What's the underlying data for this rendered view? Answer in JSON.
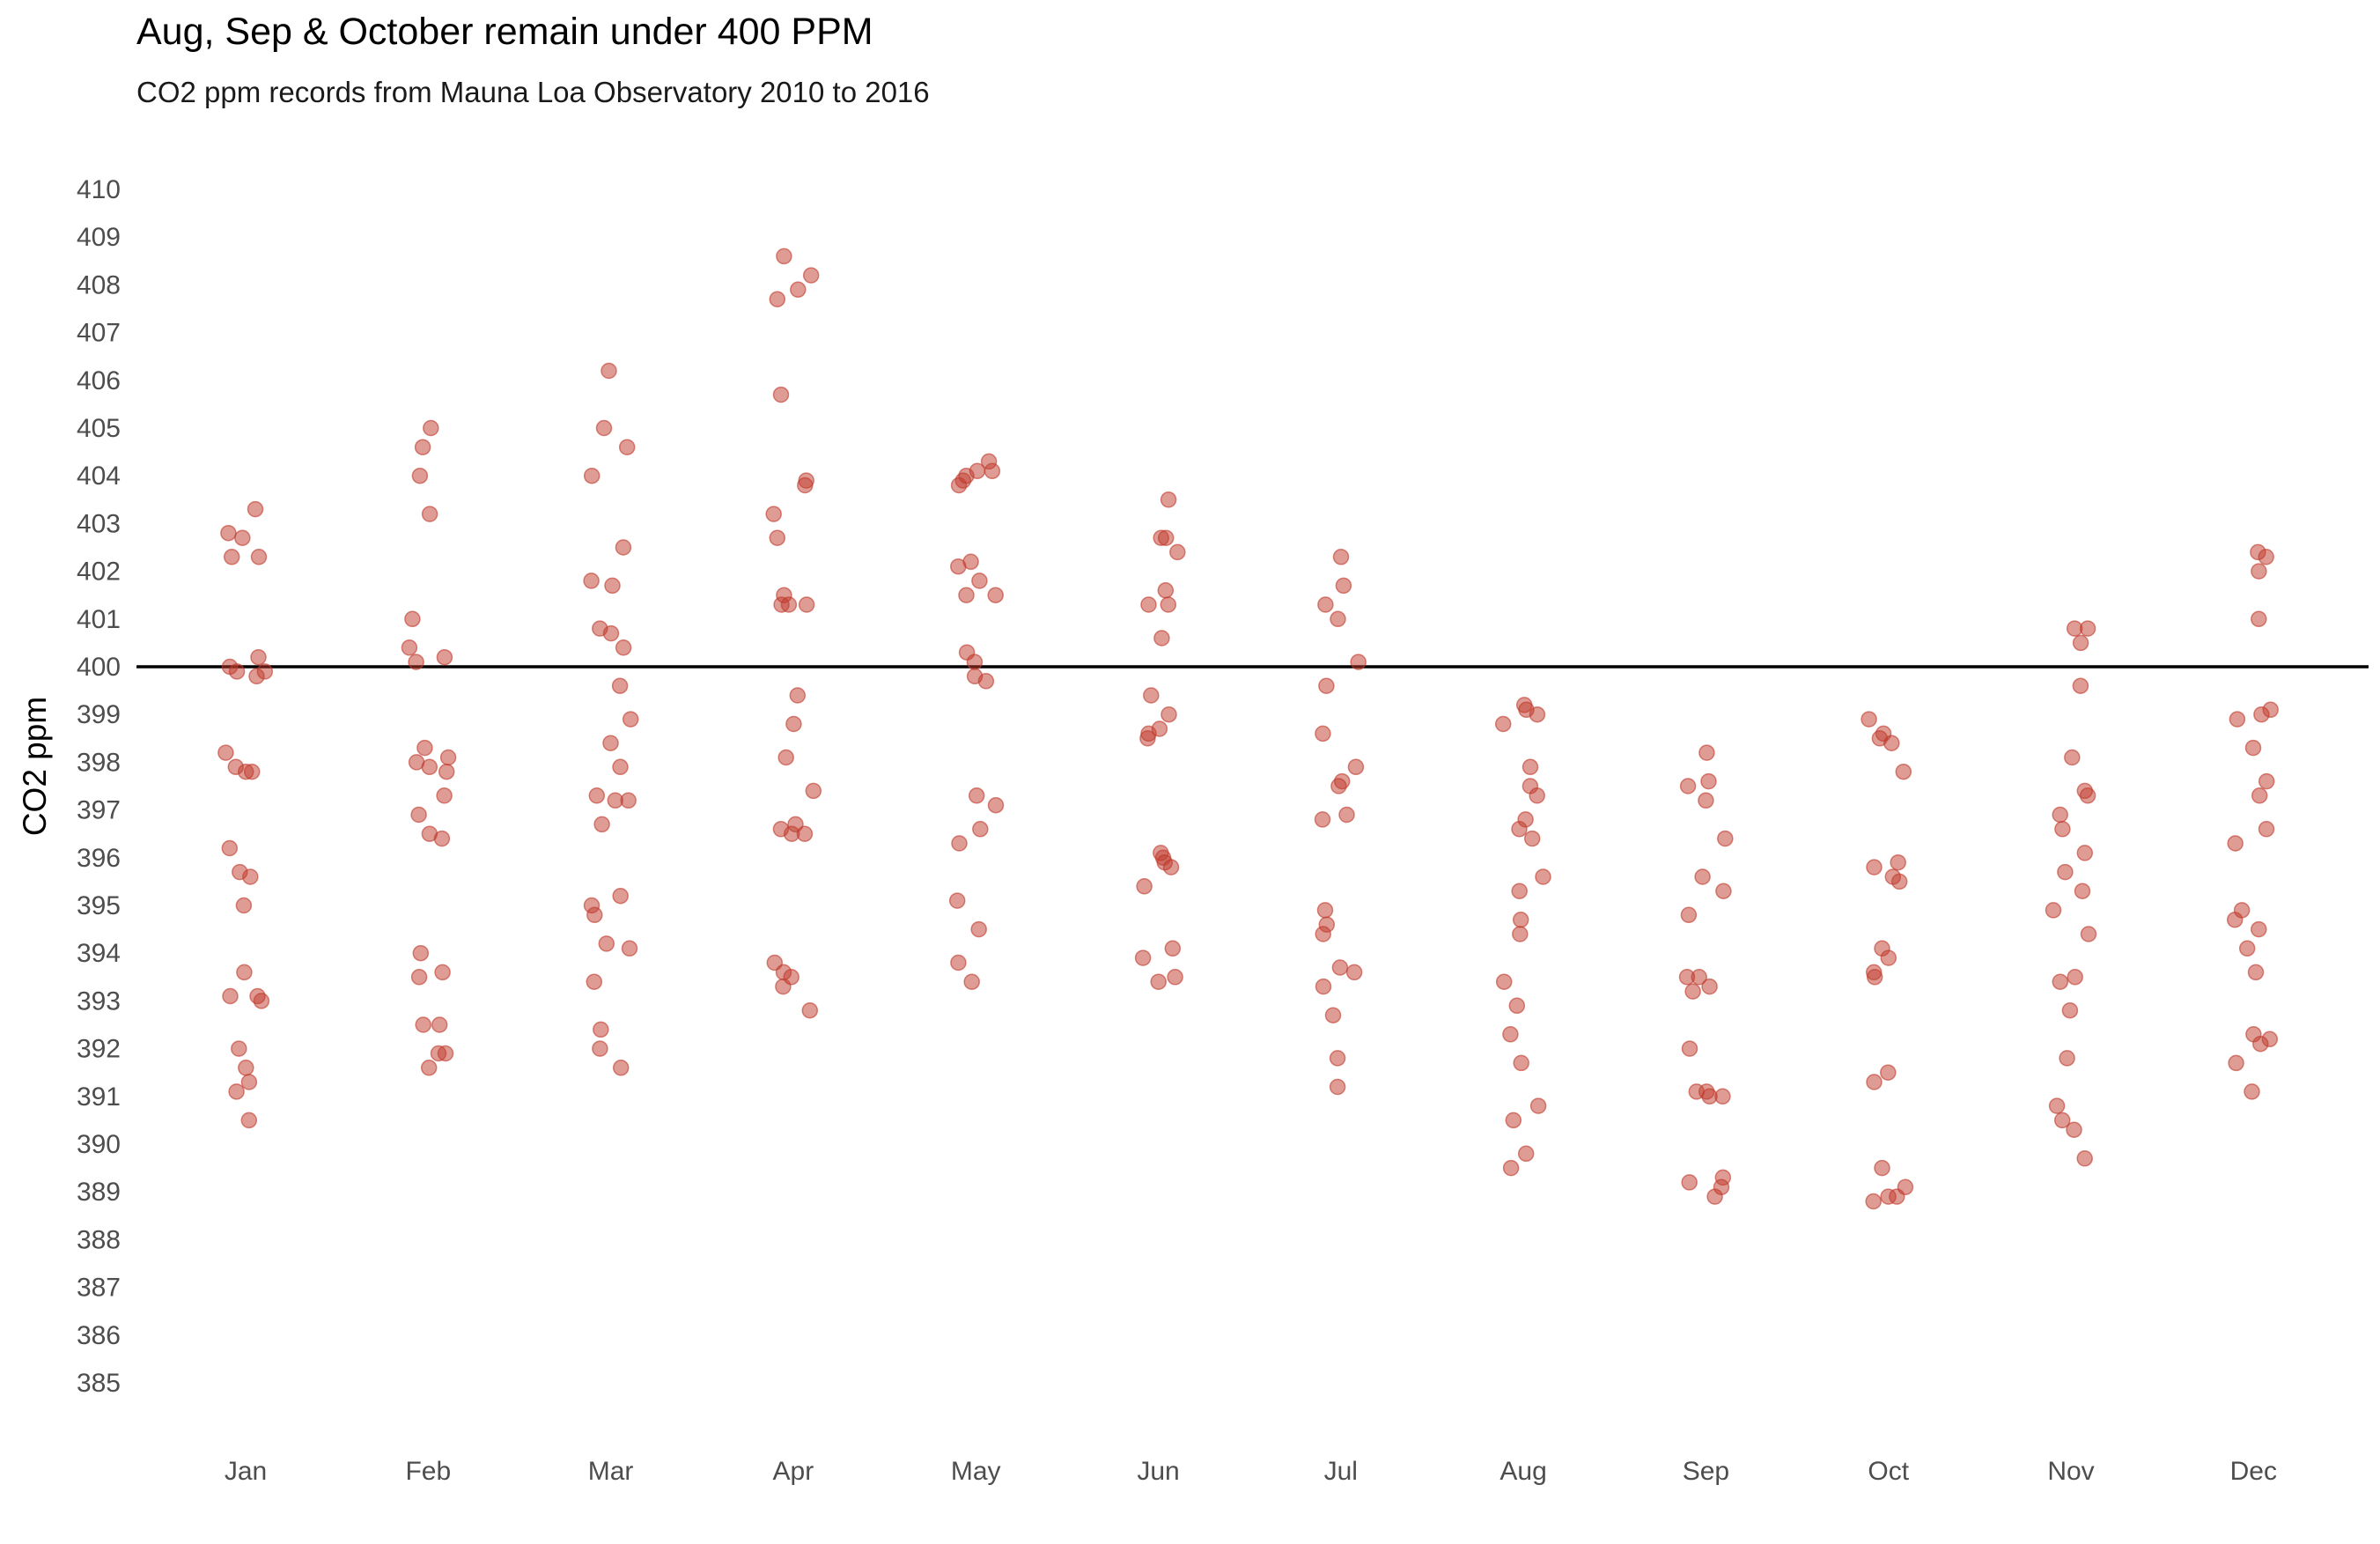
{
  "chart_data": {
    "type": "scatter",
    "title": "Aug, Sep & October remain under 400 PPM",
    "subtitle": "CO2 ppm records from Mauna Loa Observatory 2010  to 2016",
    "xlabel": "",
    "ylabel": "CO2 ppm",
    "ylim": [
      384,
      411
    ],
    "yticks": [
      385,
      386,
      387,
      388,
      389,
      390,
      391,
      392,
      393,
      394,
      395,
      396,
      397,
      398,
      399,
      400,
      401,
      402,
      403,
      404,
      405,
      406,
      407,
      408,
      409,
      410
    ],
    "categories": [
      "Jan",
      "Feb",
      "Mar",
      "Apr",
      "May",
      "Jun",
      "Jul",
      "Aug",
      "Sep",
      "Oct",
      "Nov",
      "Dec"
    ],
    "reference_line": 400,
    "grid": false,
    "legend": "none",
    "point_color": "#c0392b",
    "line_color": "#000000",
    "points": {
      "Jan": [
        403.3,
        402.8,
        402.7,
        402.3,
        402.3,
        400.2,
        400.0,
        399.9,
        399.9,
        399.8,
        398.2,
        397.9,
        397.8,
        397.8,
        396.2,
        395.7,
        395.6,
        395.0,
        393.6,
        393.1,
        393.1,
        393.0,
        392.0,
        391.6,
        391.3,
        391.1,
        390.5
      ],
      "Feb": [
        405.0,
        404.6,
        404.0,
        403.2,
        401.0,
        400.4,
        400.2,
        400.1,
        398.3,
        398.1,
        398.0,
        397.9,
        397.8,
        397.3,
        396.9,
        396.5,
        396.4,
        394.0,
        393.6,
        393.5,
        392.5,
        392.5,
        391.9,
        391.9,
        391.6
      ],
      "Mar": [
        406.2,
        405.0,
        404.6,
        404.0,
        402.5,
        401.8,
        401.7,
        400.8,
        400.7,
        400.4,
        399.6,
        398.9,
        398.4,
        397.9,
        397.3,
        397.2,
        397.2,
        396.7,
        395.2,
        395.0,
        394.8,
        394.2,
        394.1,
        393.4,
        392.4,
        392.0,
        391.6
      ],
      "Apr": [
        408.6,
        408.2,
        407.9,
        407.7,
        405.7,
        403.9,
        403.8,
        403.2,
        402.7,
        401.5,
        401.3,
        401.3,
        401.3,
        399.4,
        398.8,
        398.1,
        397.4,
        396.7,
        396.6,
        396.5,
        396.5,
        393.8,
        393.6,
        393.5,
        393.3,
        392.8
      ],
      "May": [
        404.3,
        404.1,
        404.1,
        404.0,
        403.9,
        403.8,
        402.2,
        402.1,
        401.8,
        401.5,
        401.5,
        400.3,
        400.1,
        399.8,
        399.7,
        397.3,
        397.1,
        396.6,
        396.3,
        395.1,
        394.5,
        393.8,
        393.4
      ],
      "Jun": [
        403.5,
        402.7,
        402.7,
        402.4,
        401.6,
        401.3,
        401.3,
        400.6,
        399.4,
        399.0,
        398.7,
        398.6,
        398.5,
        396.1,
        396.0,
        395.9,
        395.8,
        395.4,
        394.1,
        393.9,
        393.5,
        393.4
      ],
      "Jul": [
        402.3,
        401.7,
        401.3,
        401.0,
        400.1,
        399.6,
        398.6,
        397.9,
        397.6,
        397.5,
        396.9,
        396.8,
        394.9,
        394.6,
        394.4,
        393.7,
        393.6,
        393.3,
        392.7,
        391.8,
        391.2
      ],
      "Aug": [
        399.2,
        399.1,
        399.0,
        398.8,
        397.9,
        397.5,
        397.3,
        396.8,
        396.6,
        396.4,
        395.6,
        395.3,
        394.7,
        394.4,
        393.4,
        392.9,
        392.3,
        391.7,
        390.8,
        390.5,
        389.8,
        389.5
      ],
      "Sep": [
        398.2,
        397.6,
        397.5,
        397.2,
        396.4,
        395.6,
        395.3,
        394.8,
        393.5,
        393.5,
        393.3,
        393.2,
        392.0,
        391.1,
        391.1,
        391.0,
        391.0,
        389.3,
        389.2,
        389.1,
        388.9
      ],
      "Oct": [
        398.9,
        398.6,
        398.5,
        398.4,
        397.8,
        395.9,
        395.8,
        395.6,
        395.5,
        394.1,
        393.9,
        393.6,
        393.5,
        391.5,
        391.3,
        389.5,
        389.1,
        388.9,
        388.9,
        388.8
      ],
      "Nov": [
        400.8,
        400.8,
        400.5,
        399.6,
        398.1,
        397.4,
        397.3,
        396.9,
        396.6,
        396.1,
        395.7,
        395.3,
        394.9,
        394.4,
        393.5,
        393.4,
        392.8,
        391.8,
        390.8,
        390.5,
        390.3,
        389.7
      ],
      "Dec": [
        402.4,
        402.3,
        402.0,
        401.0,
        399.1,
        399.0,
        398.9,
        398.3,
        397.6,
        397.3,
        396.6,
        396.3,
        394.9,
        394.7,
        394.5,
        394.1,
        393.6,
        392.3,
        392.2,
        392.1,
        391.7,
        391.1
      ]
    }
  }
}
